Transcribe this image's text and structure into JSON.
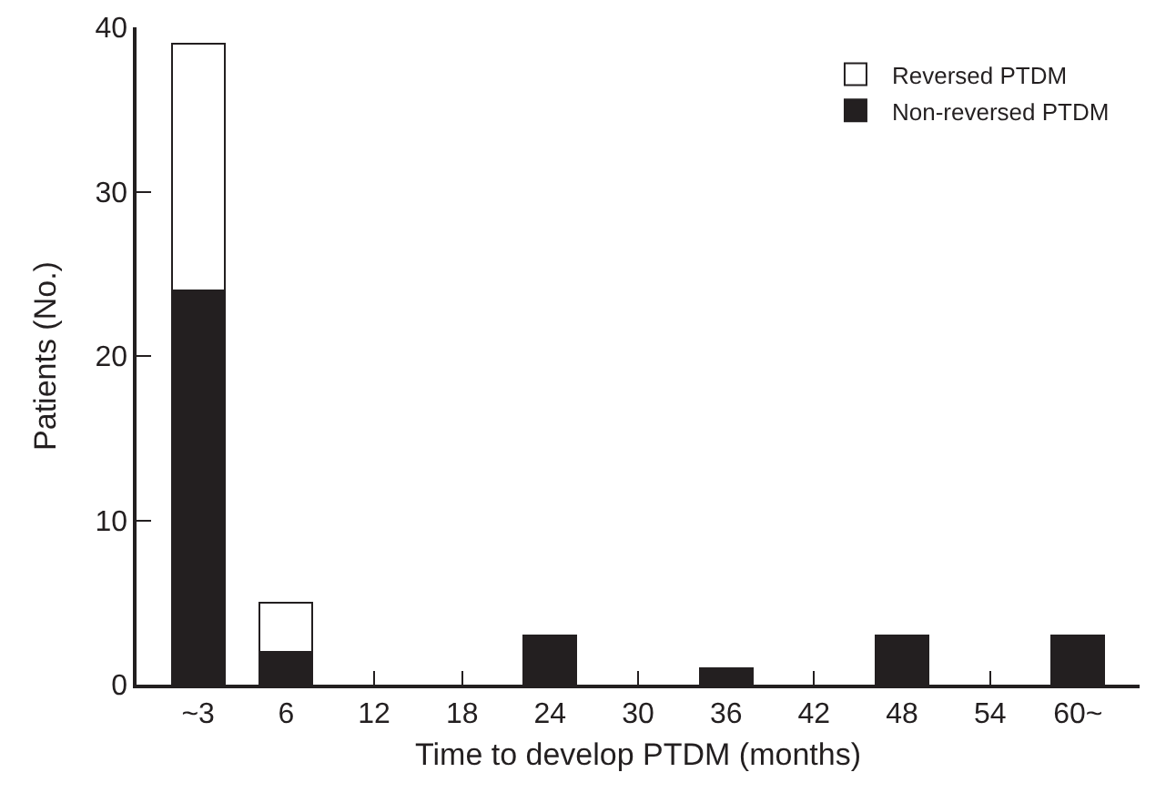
{
  "chart_data": {
    "type": "bar",
    "stacked": true,
    "xlabel": "Time to develop PTDM (months)",
    "ylabel": "Patients (No.)",
    "categories": [
      "~3",
      "6",
      "12",
      "18",
      "24",
      "30",
      "36",
      "42",
      "48",
      "54",
      "60~"
    ],
    "series": [
      {
        "name": "Non-reversed PTDM",
        "color": "#231f20",
        "values": [
          24,
          2,
          0,
          0,
          3,
          0,
          1,
          0,
          3,
          0,
          3
        ]
      },
      {
        "name": "Reversed PTDM",
        "color": "#ffffff",
        "values": [
          15,
          3,
          0,
          0,
          0,
          0,
          0,
          0,
          0,
          0,
          0
        ]
      }
    ],
    "ylim": [
      0,
      40
    ],
    "yticks": [
      0,
      10,
      20,
      30,
      40
    ],
    "grid": false,
    "legend": "top right"
  }
}
